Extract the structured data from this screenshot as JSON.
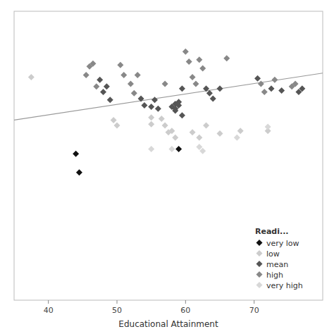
{
  "chart_data": {
    "type": "scatter",
    "xlabel": "Educational Attainment",
    "xlim": [
      35,
      80
    ],
    "ylim": [
      -2.8,
      1.5
    ],
    "xticks": [
      40,
      50,
      60,
      70
    ],
    "tick_labels": "x",
    "marker": "diamond",
    "legend": "lower right",
    "legend_title": "Readi...",
    "series": [
      {
        "name": "very low",
        "color": "#111111",
        "x": [
          44.0,
          44.5,
          59.0
        ],
        "values": [
          -0.62,
          -0.9,
          -0.55
        ]
      },
      {
        "name": "low",
        "color": "#cccccc",
        "x": [
          37.5,
          49.5,
          50.0,
          56.5,
          57.0,
          57.5,
          55.0,
          55.0,
          58.0,
          58.5,
          61.0,
          62.0,
          63.0,
          65.0,
          68.0,
          72.0
        ],
        "values": [
          0.52,
          -0.12,
          -0.2,
          -0.1,
          -0.2,
          -0.3,
          -0.08,
          -0.18,
          -0.28,
          -0.38,
          -0.3,
          -0.38,
          -0.2,
          -0.32,
          -0.28,
          -0.28
        ]
      },
      {
        "name": "mean",
        "color": "#555555",
        "x": [
          47.5,
          48.0,
          48.5,
          49.0,
          53.5,
          54.0,
          55.0,
          55.5,
          56.0,
          58.0,
          58.5,
          58.5,
          58.5,
          59.0,
          59.0,
          59.5,
          59.5,
          63.0,
          63.5,
          64.0,
          65.0,
          70.5,
          72.5,
          74.0,
          76.5,
          77.0
        ],
        "values": [
          0.48,
          0.3,
          0.38,
          0.18,
          0.2,
          0.1,
          0.08,
          0.18,
          0.05,
          0.08,
          0.12,
          0.05,
          0.02,
          0.1,
          0.15,
          0.35,
          -0.05,
          0.35,
          0.28,
          0.2,
          0.35,
          0.5,
          0.35,
          0.32,
          0.3,
          0.35
        ]
      },
      {
        "name": "high",
        "color": "#888888",
        "x": [
          45.5,
          46.0,
          46.5,
          47.0,
          50.5,
          51.0,
          52.0,
          52.5,
          53.0,
          57.0,
          60.0,
          60.5,
          61.0,
          61.5,
          62.0,
          62.5,
          66.0,
          71.0,
          71.5,
          73.0,
          75.5,
          76.0
        ],
        "values": [
          0.55,
          0.68,
          0.72,
          0.38,
          0.7,
          0.55,
          0.42,
          0.28,
          0.55,
          0.42,
          0.9,
          0.75,
          0.52,
          0.42,
          0.78,
          0.65,
          0.8,
          0.42,
          0.3,
          0.48,
          0.38,
          0.42
        ]
      },
      {
        "name": "very high",
        "color": "#d8d8d8",
        "x": [
          55.0,
          58.0,
          62.0,
          62.5,
          67.5,
          72.0
        ],
        "values": [
          -0.55,
          -0.55,
          -0.52,
          -0.58,
          -0.38,
          -0.22
        ]
      },
      {
        "type": "line",
        "color": "#999999",
        "x": [
          35,
          80
        ],
        "values": [
          -0.12,
          0.58
        ]
      }
    ]
  }
}
